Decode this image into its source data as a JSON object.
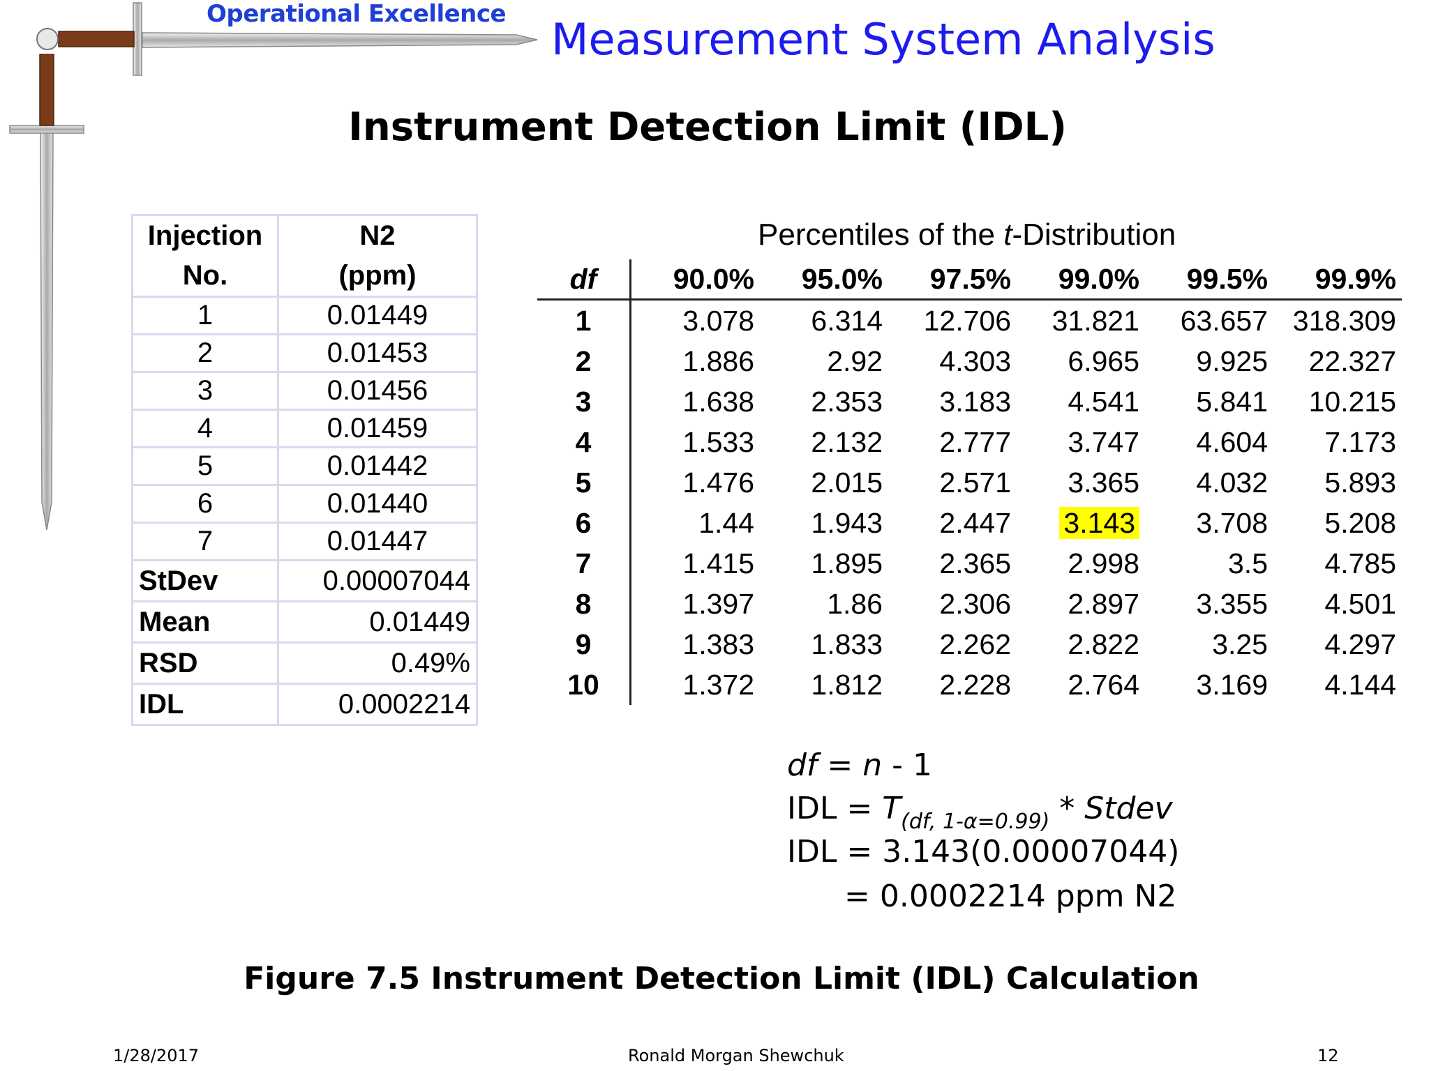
{
  "header": {
    "brand": "Operational Excellence",
    "title": "Measurement System Analysis",
    "slide_title": "Instrument Detection Limit (IDL)",
    "logo_icon": "sword-icon"
  },
  "injection_table": {
    "headers": [
      "Injection No.",
      "N2 (ppm)"
    ],
    "header_lines": [
      [
        "Injection",
        "No."
      ],
      [
        "N2",
        "(ppm)"
      ]
    ],
    "rows": [
      [
        "1",
        "0.01449"
      ],
      [
        "2",
        "0.01453"
      ],
      [
        "3",
        "0.01456"
      ],
      [
        "4",
        "0.01459"
      ],
      [
        "5",
        "0.01442"
      ],
      [
        "6",
        "0.01440"
      ],
      [
        "7",
        "0.01447"
      ]
    ],
    "stats": [
      [
        "StDev",
        "0.00007044"
      ],
      [
        "Mean",
        "0.01449"
      ],
      [
        "RSD",
        "0.49%"
      ],
      [
        "IDL",
        "0.0002214"
      ]
    ]
  },
  "t_table": {
    "caption_pre": "Percentiles of the ",
    "caption_t": "t",
    "caption_post": "-Distribution",
    "columns": [
      "df",
      "90.0%",
      "95.0%",
      "97.5%",
      "99.0%",
      "99.5%",
      "99.9%"
    ],
    "rows": [
      [
        "1",
        "3.078",
        "6.314",
        "12.706",
        "31.821",
        "63.657",
        "318.309"
      ],
      [
        "2",
        "1.886",
        "2.92",
        "4.303",
        "6.965",
        "9.925",
        "22.327"
      ],
      [
        "3",
        "1.638",
        "2.353",
        "3.183",
        "4.541",
        "5.841",
        "10.215"
      ],
      [
        "4",
        "1.533",
        "2.132",
        "2.777",
        "3.747",
        "4.604",
        "7.173"
      ],
      [
        "5",
        "1.476",
        "2.015",
        "2.571",
        "3.365",
        "4.032",
        "5.893"
      ],
      [
        "6",
        "1.44",
        "1.943",
        "2.447",
        "3.143",
        "3.708",
        "5.208"
      ],
      [
        "7",
        "1.415",
        "1.895",
        "2.365",
        "2.998",
        "3.5",
        "4.785"
      ],
      [
        "8",
        "1.397",
        "1.86",
        "2.306",
        "2.897",
        "3.355",
        "4.501"
      ],
      [
        "9",
        "1.383",
        "1.833",
        "2.262",
        "2.822",
        "3.25",
        "4.297"
      ],
      [
        "10",
        "1.372",
        "1.812",
        "2.228",
        "2.764",
        "3.169",
        "4.144"
      ]
    ],
    "highlight": {
      "row": 5,
      "col": 4,
      "color": "#ffff00"
    }
  },
  "formulas": {
    "line1_df": "df",
    "line1_eq": " = ",
    "line1_n": "n",
    "line1_rest": " - 1",
    "line2_pre": "IDL = ",
    "line2_T": "T",
    "line2_sub": "(df, 1-α=0.99)",
    "line2_post": " * Stdev",
    "line3": "IDL = 3.143(0.00007044)",
    "line4": "= 0.0002214 ppm N2"
  },
  "caption": "Figure 7.5  Instrument Detection Limit (IDL) Calculation",
  "footer": {
    "date": "1/28/2017",
    "author": "Ronald Morgan Shewchuk",
    "page": "12"
  }
}
